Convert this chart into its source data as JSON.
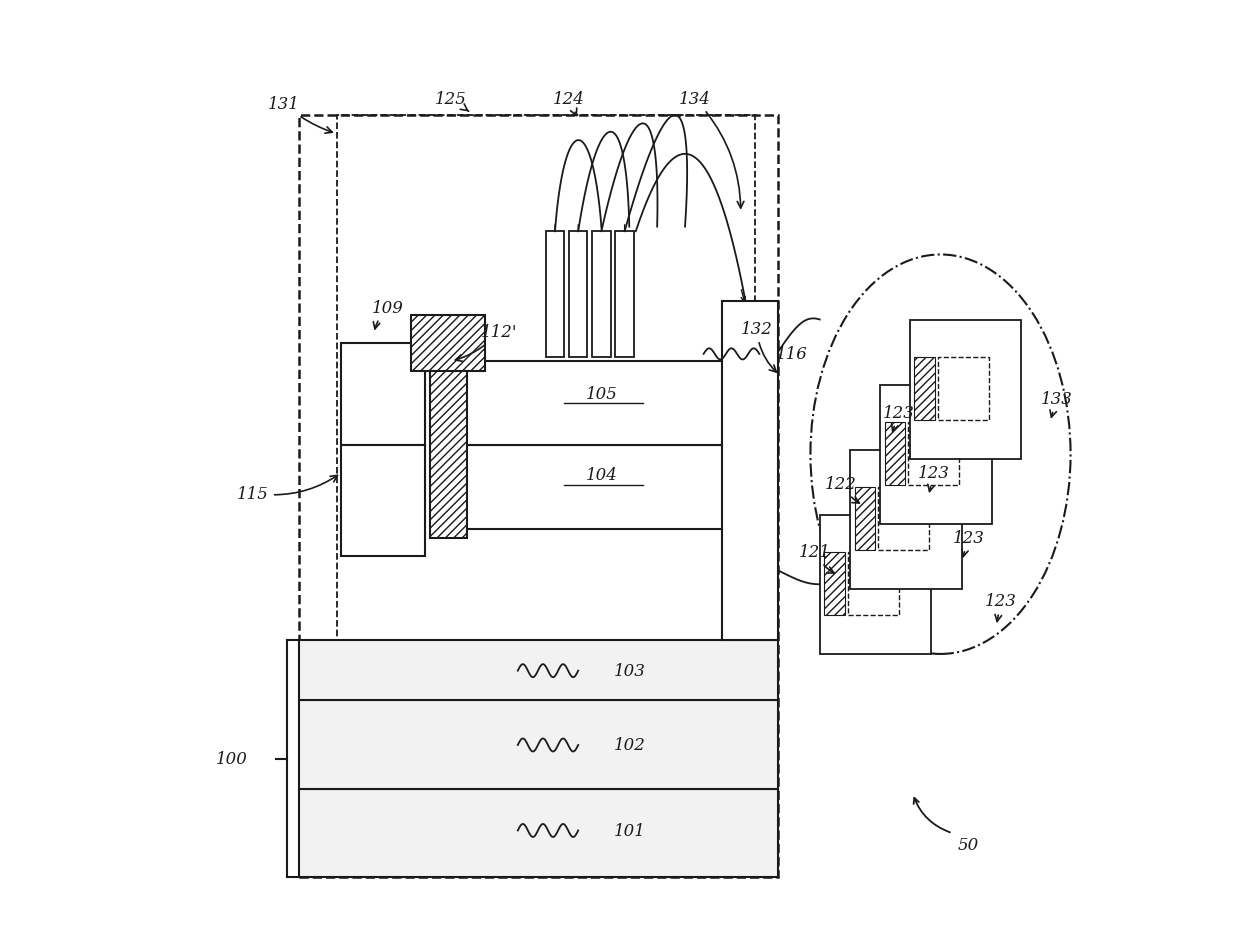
{
  "bg": "#ffffff",
  "lc": "#1a1a1a",
  "lw": 1.5,
  "fig_w": 12.4,
  "fig_h": 9.29,
  "dpi": 100
}
